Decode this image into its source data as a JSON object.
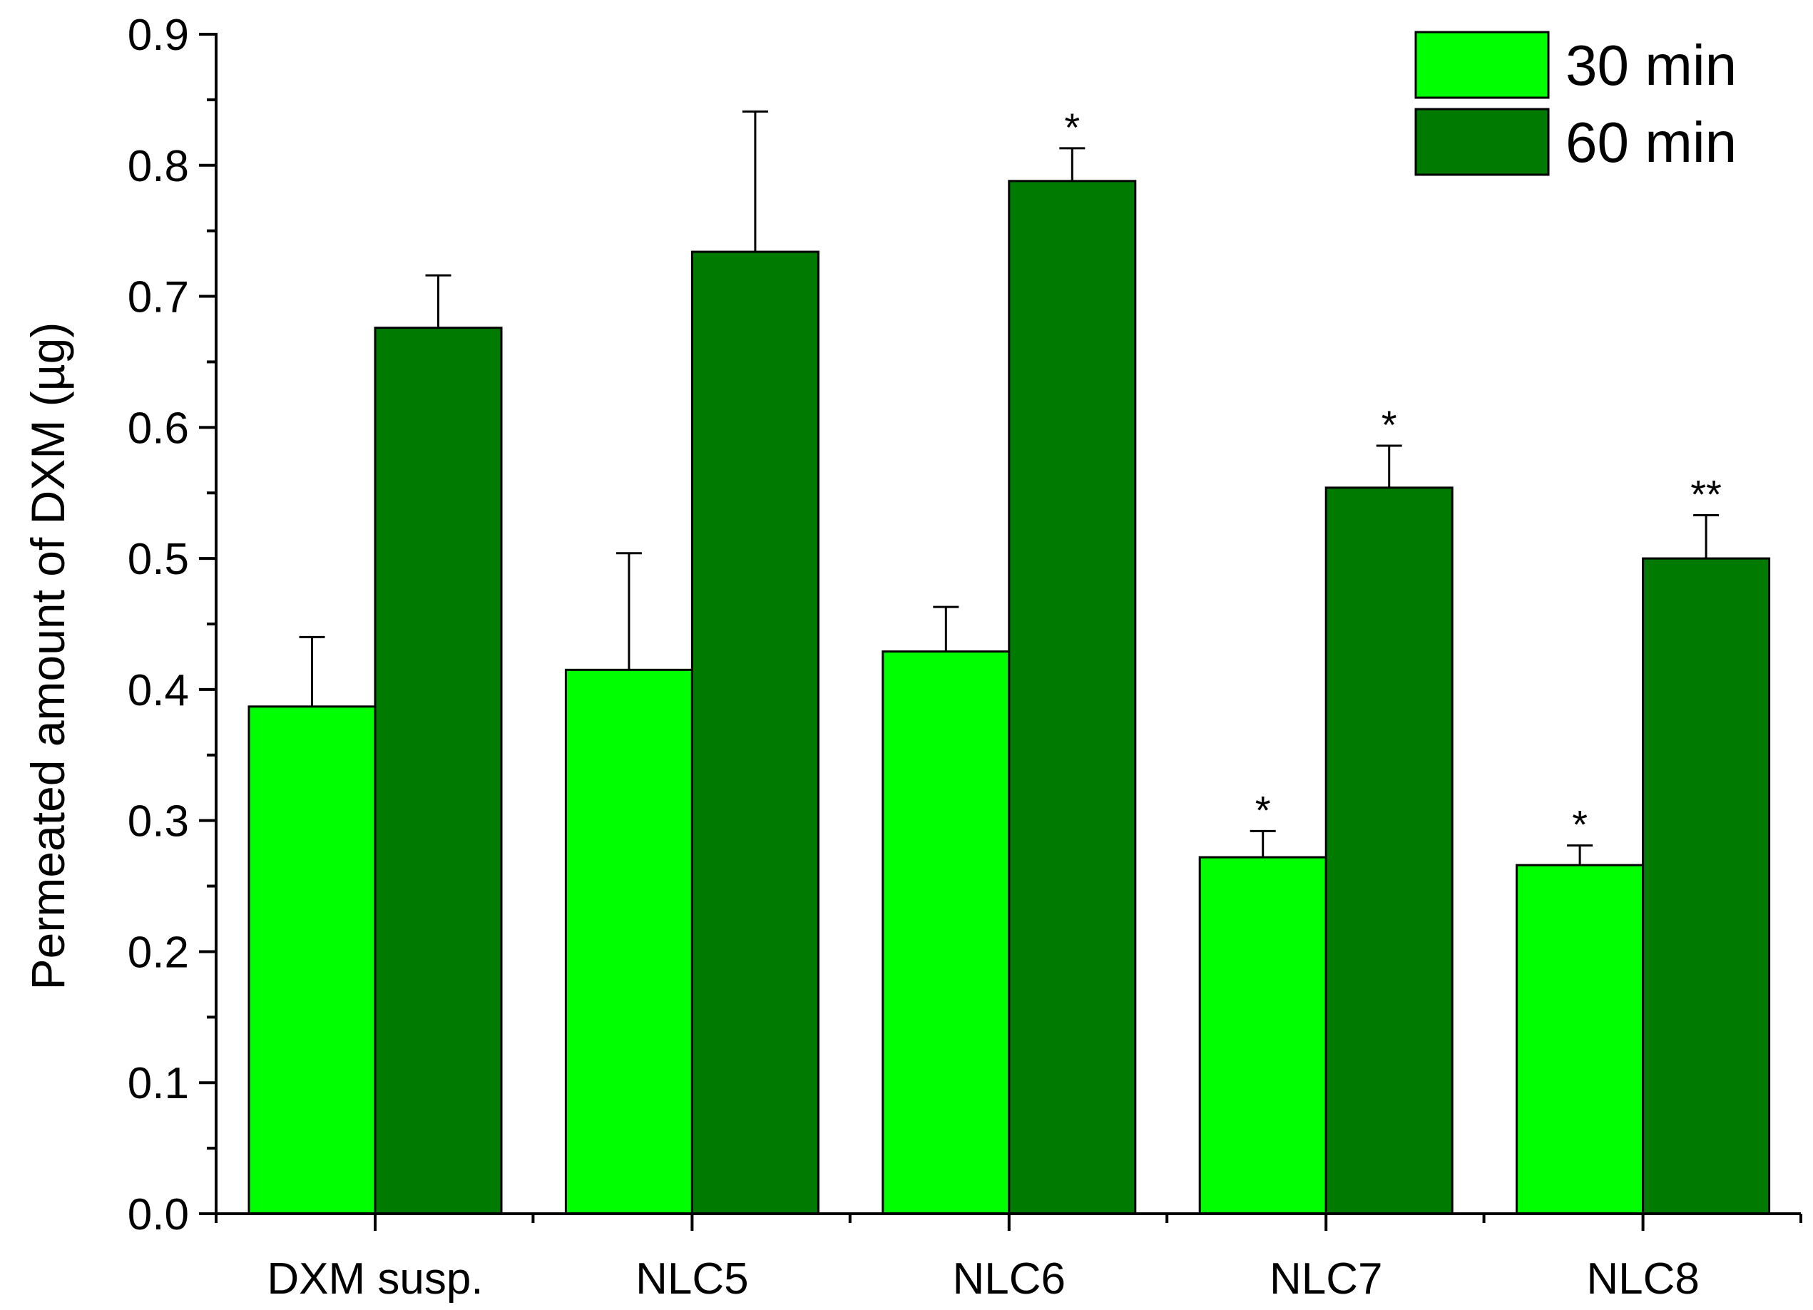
{
  "chart_data": {
    "type": "bar",
    "title": "",
    "xlabel": "",
    "ylabel": "Permeated amount of DXM (µg)",
    "ylim": [
      0,
      0.9
    ],
    "yticks": [
      "0.0",
      "0.1",
      "0.2",
      "0.3",
      "0.4",
      "0.5",
      "0.6",
      "0.7",
      "0.8",
      "0.9"
    ],
    "categories": [
      "DXM susp.",
      "NLC5",
      "NLC6",
      "NLC7",
      "NLC8"
    ],
    "series": [
      {
        "name": "30 min",
        "color": "#00ff00",
        "values": [
          0.387,
          0.415,
          0.429,
          0.272,
          0.266
        ],
        "errors": [
          0.053,
          0.089,
          0.034,
          0.02,
          0.015
        ],
        "significance": [
          "",
          "",
          "",
          "*",
          "*"
        ]
      },
      {
        "name": "60 min",
        "color": "#007a00",
        "values": [
          0.676,
          0.734,
          0.788,
          0.554,
          0.5
        ],
        "errors": [
          0.04,
          0.107,
          0.025,
          0.032,
          0.033
        ],
        "significance": [
          "",
          "",
          "*",
          "*",
          "**"
        ]
      }
    ],
    "legend_position": "top-right",
    "grid": false
  }
}
